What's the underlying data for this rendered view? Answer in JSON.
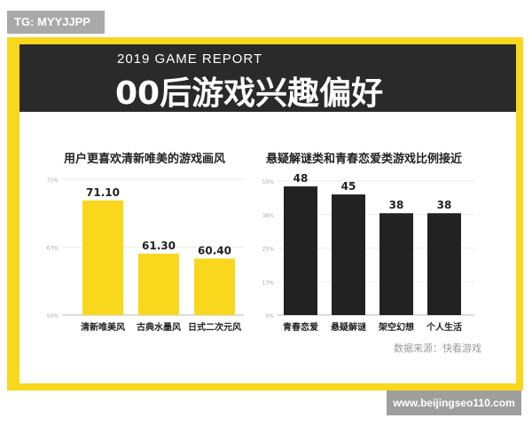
{
  "watermark": "TG: MYYJJPP",
  "header": {
    "subtitle": "2019 GAME REPORT",
    "title": "00后游戏兴趣偏好"
  },
  "source": "数据来源：快看游戏",
  "url_badge": "www.beijingseo110.com",
  "colors": {
    "frame": "#f9d71c",
    "header": "#2a2a2a",
    "left_bars": "#f9d71c",
    "right_bars": "#222222"
  },
  "chart_data": [
    {
      "type": "bar",
      "title": "用户更喜欢清新唯美的游戏画风",
      "categories": [
        "清新唯美风",
        "古典水墨风",
        "日式二次元风"
      ],
      "values": [
        71.1,
        61.3,
        60.4
      ],
      "data_labels": [
        "71.10",
        "61.30",
        "60.40"
      ],
      "ylim": [
        50,
        75
      ],
      "yticks": [
        "50%",
        "63%",
        "75%"
      ],
      "grid": true
    },
    {
      "type": "bar",
      "title": "悬疑解谜类和青春恋爱类游戏比例接近",
      "categories": [
        "青春恋爱",
        "悬疑解谜",
        "架空幻想",
        "个人生活"
      ],
      "values": [
        48,
        45,
        38,
        38
      ],
      "data_labels": [
        "48",
        "45",
        "38",
        "38"
      ],
      "ylim": [
        0,
        50
      ],
      "yticks": [
        "0%",
        "13%",
        "25%",
        "38%",
        "50%"
      ],
      "grid": true
    }
  ]
}
